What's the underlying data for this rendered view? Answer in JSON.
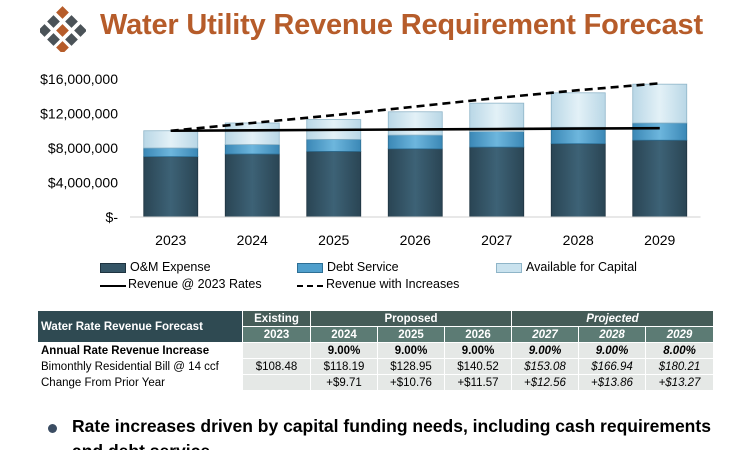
{
  "title": "Water Utility Revenue Requirement Forecast",
  "colors": {
    "title": "#b65c2a",
    "om": "#355566",
    "debt": "#4f9fcc",
    "capital": "#c9e2ee",
    "line": "#000000",
    "table_header_dark": "#2f4a52",
    "table_header_mid": "#5c7b74"
  },
  "chart_data": {
    "type": "bar",
    "stacked": true,
    "categories": [
      "2023",
      "2024",
      "2025",
      "2026",
      "2027",
      "2028",
      "2029"
    ],
    "series": [
      {
        "name": "O&M Expense",
        "type": "bar",
        "values": [
          7000000,
          7300000,
          7600000,
          7900000,
          8100000,
          8500000,
          8900000
        ]
      },
      {
        "name": "Debt Service",
        "type": "bar",
        "values": [
          1000000,
          1100000,
          1400000,
          1600000,
          1800000,
          1900000,
          2000000
        ]
      },
      {
        "name": "Available for Capital",
        "type": "bar",
        "values": [
          2000000,
          2500000,
          2300000,
          2700000,
          3300000,
          4000000,
          4500000
        ]
      },
      {
        "name": "Revenue @ 2023 Rates",
        "type": "line",
        "style": "solid",
        "values": [
          10000000,
          10050000,
          10100000,
          10150000,
          10200000,
          10250000,
          10300000
        ]
      },
      {
        "name": "Revenue with Increases",
        "type": "line",
        "style": "dashed",
        "values": [
          10000000,
          10900000,
          11800000,
          12800000,
          13800000,
          14700000,
          15500000
        ]
      }
    ],
    "yticks": [
      "$16,000,000",
      "$12,000,000",
      "$8,000,000",
      "$4,000,000",
      "$-"
    ],
    "ylim": [
      0,
      16000000
    ],
    "grid": false,
    "legend_position": "bottom"
  },
  "legend": [
    {
      "label": "O&M Expense",
      "kind": "bar",
      "color_key": "om"
    },
    {
      "label": "Debt Service",
      "kind": "bar",
      "color_key": "debt"
    },
    {
      "label": "Available for Capital",
      "kind": "bar",
      "color_key": "capital"
    },
    {
      "label": "Revenue @ 2023 Rates",
      "kind": "solid"
    },
    {
      "label": "Revenue with Increases",
      "kind": "dashed"
    }
  ],
  "table": {
    "title": "Water Rate Revenue Forecast",
    "groups": {
      "existing": "Existing",
      "proposed": "Proposed",
      "projected": "Projected"
    },
    "years": [
      "2023",
      "2024",
      "2025",
      "2026",
      "2027",
      "2028",
      "2029"
    ],
    "rows": [
      {
        "label": "Annual Rate Revenue Increase",
        "values": [
          "",
          "9.00%",
          "9.00%",
          "9.00%",
          "9.00%",
          "9.00%",
          "8.00%"
        ]
      },
      {
        "label": "Bimonthly Residential Bill @ 14 ccf",
        "values": [
          "$108.48",
          "$118.19",
          "$128.95",
          "$140.52",
          "$153.08",
          "$166.94",
          "$180.21"
        ]
      },
      {
        "label": "Change From Prior Year",
        "values": [
          "",
          "+$9.71",
          "+$10.76",
          "+$11.57",
          "+$12.56",
          "+$13.86",
          "+$13.27"
        ]
      }
    ]
  },
  "bullet": "Rate increases driven by capital funding needs, including cash requirements and debt service"
}
